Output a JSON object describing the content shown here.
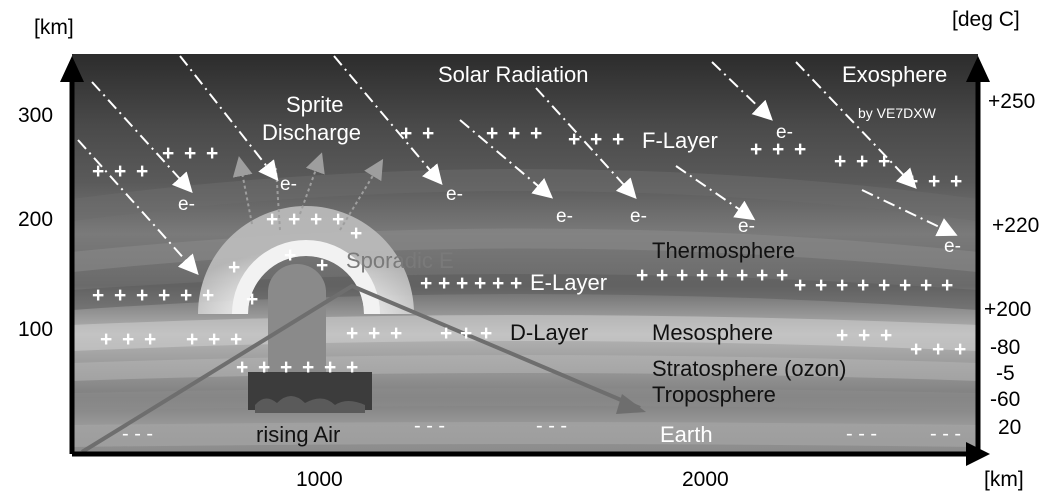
{
  "axes": {
    "y_unit_left": "[km]",
    "y_unit_right": "[deg C]",
    "x_unit": "[km]",
    "y_ticks": [
      "300",
      "200",
      "100"
    ],
    "x_ticks": [
      "1000",
      "2000"
    ],
    "temp_ticks": [
      "+250",
      "+220",
      "+200",
      "-80",
      "-5",
      "-60",
      "20"
    ]
  },
  "labels": {
    "solar_radiation": "Solar  Radiation",
    "exosphere": "Exosphere",
    "credit": "by VE7DXW",
    "sprite_line1": "Sprite",
    "sprite_line2": "Discharge",
    "f_layer": "F-Layer",
    "thermosphere": "Thermosphere",
    "sporadic_e": "Sporadic E",
    "e_layer": "E-Layer",
    "d_layer": "D-Layer",
    "mesosphere": "Mesosphere",
    "stratosphere": "Stratosphere (ozon)",
    "troposphere": "Troposphere",
    "rising_air": "rising Air",
    "earth": "Earth"
  },
  "symbols": {
    "ion": "+",
    "electron": "e-",
    "dashes": "- - -"
  },
  "colors": {
    "dark_band": "#3a3a3a",
    "light_band": "#c8c8c8",
    "arrow_line": "#6e6e6e"
  }
}
